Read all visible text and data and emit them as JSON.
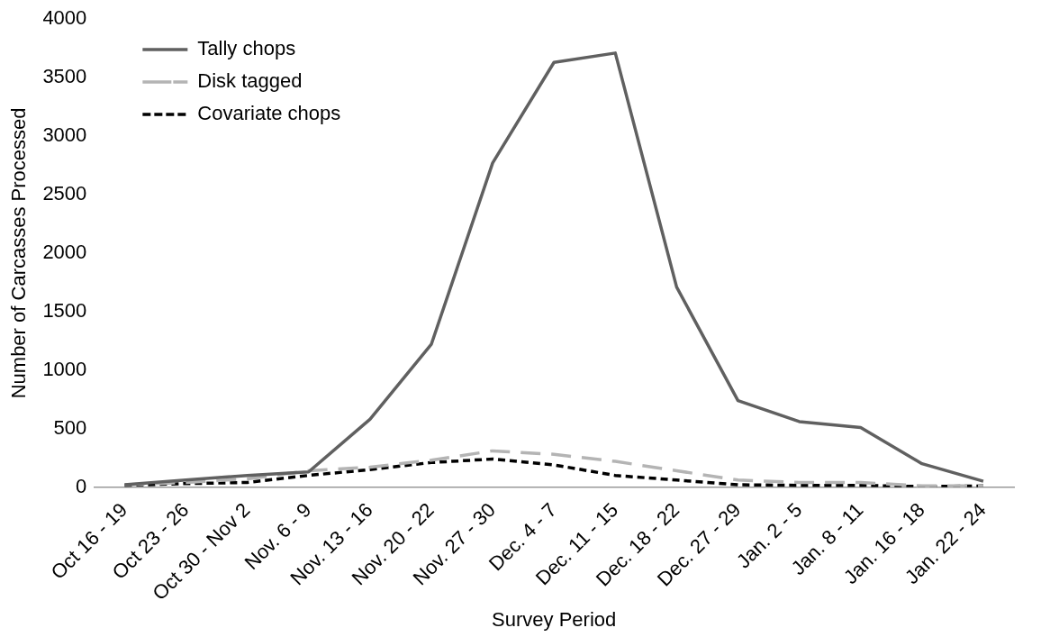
{
  "chart_data": {
    "type": "line",
    "xlabel": "Survey Period",
    "ylabel": "Number of Carcasses Processed",
    "categories": [
      "Oct 16 - 19",
      "Oct 23 - 26",
      "Oct 30 - Nov 2",
      "Nov. 6 - 9",
      "Nov. 13 - 16",
      "Nov. 20 - 22",
      "Nov. 27 - 30",
      "Dec. 4 - 7",
      "Dec. 11 - 15",
      "Dec. 18 - 22",
      "Dec. 27 - 29",
      "Jan. 2 - 5",
      "Jan. 8 - 11",
      "Jan. 16 - 18",
      "Jan. 22 - 24"
    ],
    "series": [
      {
        "name": "Tally chops",
        "color": "#606060",
        "line_style": "solid",
        "values": [
          20,
          60,
          100,
          130,
          580,
          1220,
          2770,
          3630,
          3710,
          1710,
          740,
          560,
          510,
          200,
          50
        ]
      },
      {
        "name": "Disk tagged",
        "color": "#b4b4b4",
        "line_style": "dashed",
        "values": [
          20,
          40,
          70,
          140,
          170,
          230,
          310,
          280,
          220,
          140,
          60,
          40,
          40,
          10,
          10
        ]
      },
      {
        "name": "Covariate chops",
        "color": "#000000",
        "line_style": "dotted",
        "values": [
          15,
          30,
          40,
          100,
          150,
          210,
          240,
          190,
          100,
          60,
          20,
          15,
          15,
          5,
          10
        ]
      }
    ],
    "ylim": [
      0,
      4000
    ],
    "yticks": [
      0,
      500,
      1000,
      1500,
      2000,
      2500,
      3000,
      3500,
      4000
    ],
    "grid": false,
    "legend": "top left",
    "marker": "none"
  }
}
